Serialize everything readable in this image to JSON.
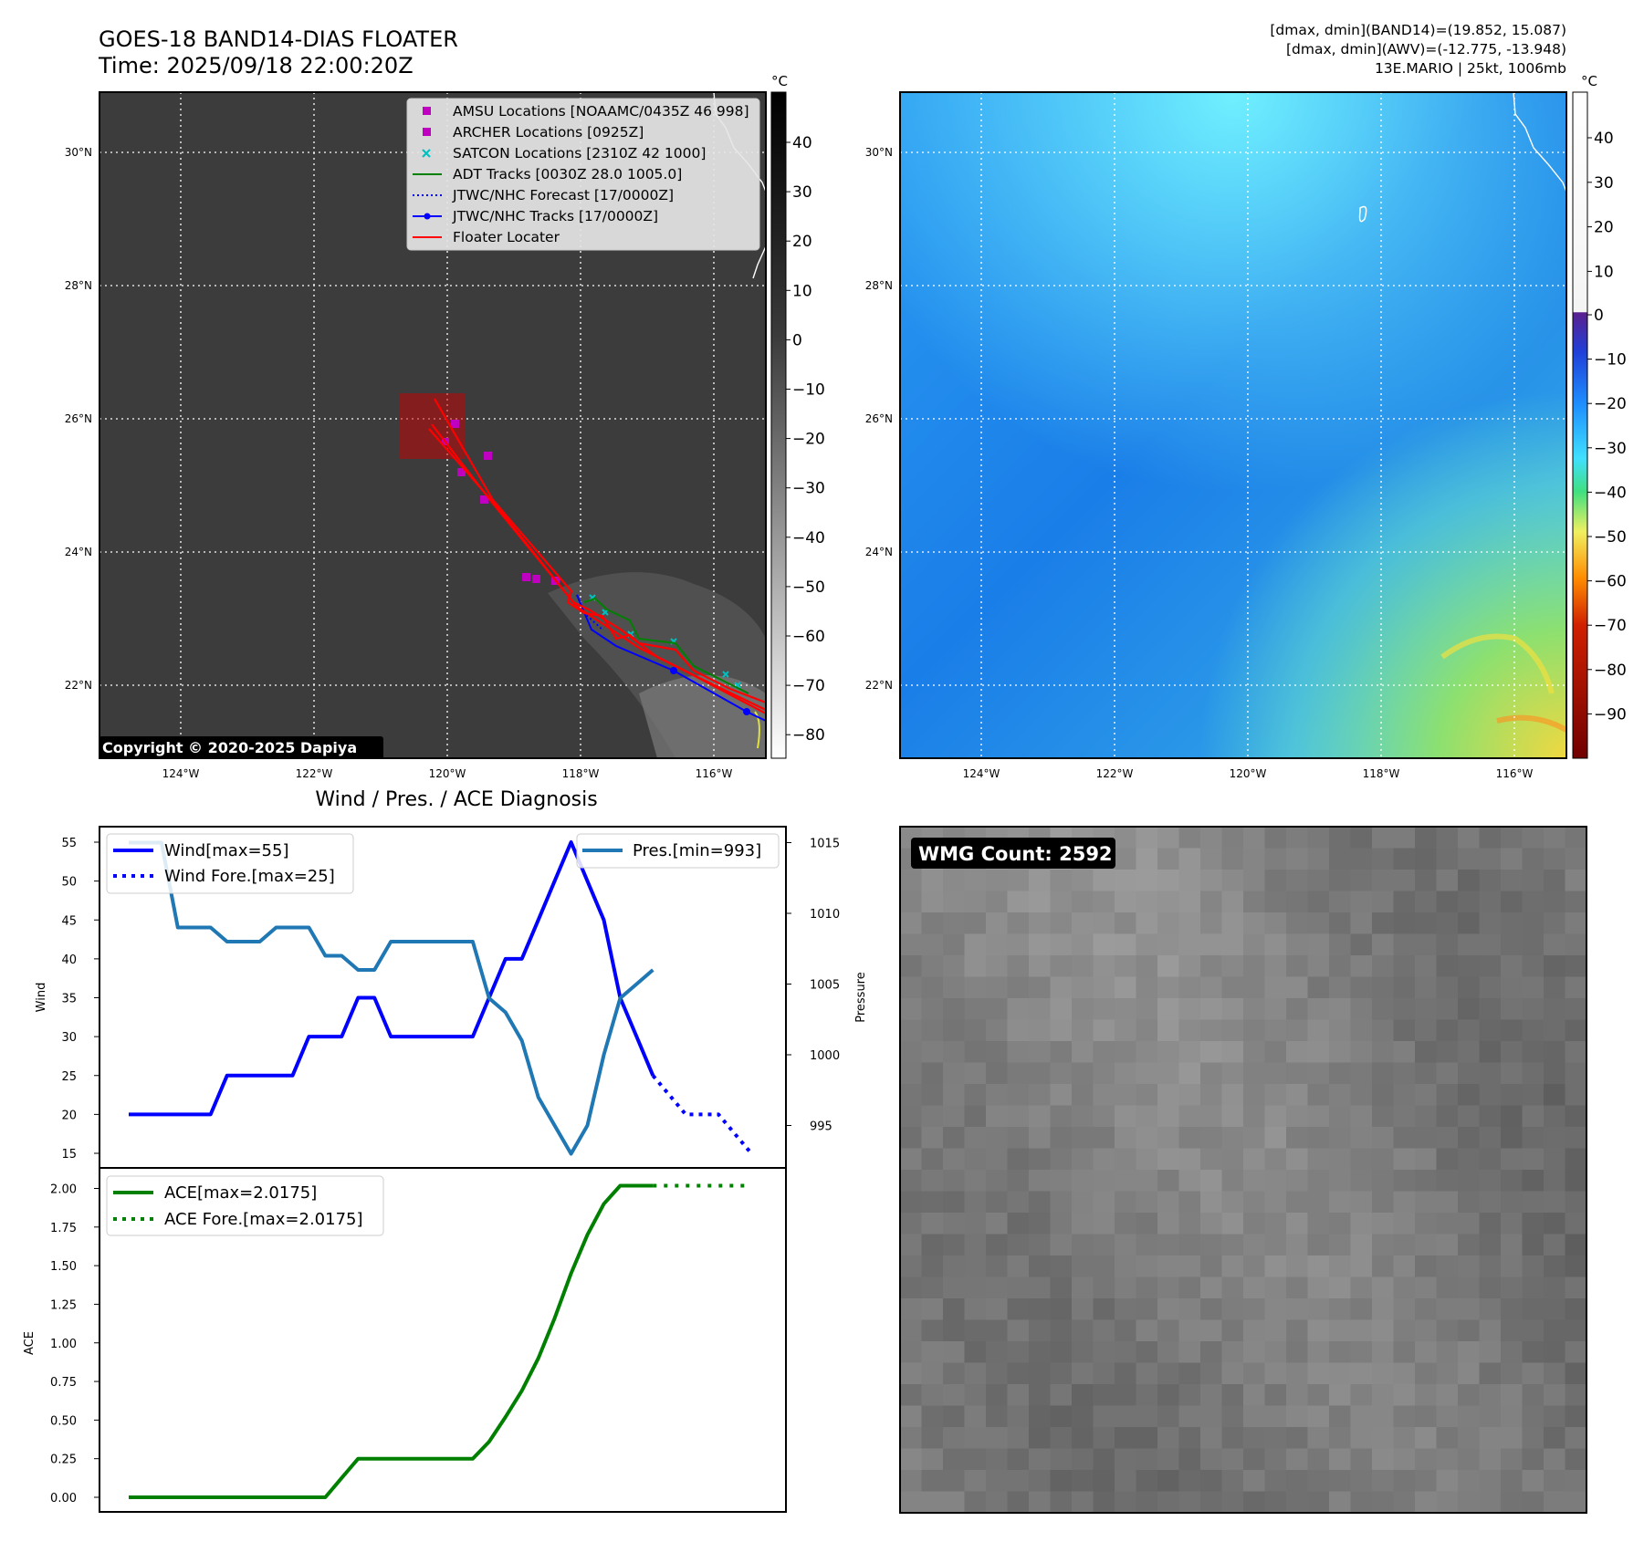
{
  "header": {
    "title_line1": "GOES-18 BAND14-DIAS FLOATER",
    "title_line2": "Time: 2025/09/18 22:00:20Z",
    "info_line1": "[dmax, dmin](BAND14)=(19.852, 15.087)",
    "info_line2": "[dmax, dmin](AWV)=(-12.775, -13.948)",
    "info_line3": "13E.MARIO | 25kt, 1006mb"
  },
  "map": {
    "lat_labels": [
      "30°N",
      "28°N",
      "26°N",
      "24°N",
      "22°N"
    ],
    "lon_labels": [
      "124°W",
      "122°W",
      "120°W",
      "118°W",
      "116°W"
    ],
    "copyright": "Copyright © 2020-2025 Dapiya",
    "legend": [
      {
        "label": "AMSU Locations [NOAAMC/0435Z 46 998]",
        "color": "#c000c0",
        "style": "square"
      },
      {
        "label": "ARCHER Locations [0925Z]",
        "color": "#c000c0",
        "style": "square"
      },
      {
        "label": "SATCON Locations [2310Z 42 1000]",
        "color": "#00c0c0",
        "style": "x"
      },
      {
        "label": "ADT Tracks [0030Z 28.0 1005.0]",
        "color": "#008000",
        "style": "line"
      },
      {
        "label": "JTWC/NHC Forecast [17/0000Z]",
        "color": "#0000ff",
        "style": "dotted"
      },
      {
        "label": "JTWC/NHC Tracks [17/0000Z]",
        "color": "#0000ff",
        "style": "line-dot"
      },
      {
        "label": "Floater Locater",
        "color": "#ff0000",
        "style": "line"
      }
    ]
  },
  "colorbar_ir": {
    "unit": "°C",
    "ticks": [
      "40",
      "30",
      "20",
      "10",
      "0",
      "−10",
      "−20",
      "−30",
      "−40",
      "−50",
      "−60",
      "−70",
      "−80"
    ]
  },
  "colorbar_awv": {
    "unit": "°C",
    "ticks": [
      "40",
      "30",
      "20",
      "10",
      "0",
      "−10",
      "−20",
      "−30",
      "−40",
      "−50",
      "−60",
      "−70",
      "−80",
      "−90"
    ]
  },
  "wmg": {
    "label": "WMG Count: 2592"
  },
  "chart_data": [
    {
      "type": "line",
      "title": "Wind / Pres. / ACE Diagnosis",
      "ylabel": "Wind",
      "y2label": "Pressure",
      "ylim": [
        14,
        56.5
      ],
      "y2lim": [
        992.5,
        1016.3
      ],
      "yticks": [
        "15",
        "20",
        "25",
        "30",
        "35",
        "40",
        "45",
        "50",
        "55"
      ],
      "y2ticks": [
        "995",
        "1000",
        "1005",
        "1010",
        "1015"
      ],
      "x": [
        0,
        1,
        2,
        3,
        4,
        5,
        6,
        7,
        8,
        9,
        10,
        11,
        12,
        13,
        14,
        15,
        16,
        17,
        18,
        19,
        20,
        21,
        22,
        23,
        24,
        25,
        26,
        27,
        28,
        29,
        30,
        31,
        32,
        33,
        34,
        35,
        36,
        37,
        38
      ],
      "series": [
        {
          "name": "Wind[max=55]",
          "axis": "left",
          "color": "#0000ff",
          "dash": "solid",
          "x": [
            0,
            1,
            2,
            3,
            4,
            5,
            6,
            7,
            8,
            9,
            10,
            11,
            12,
            13,
            14,
            15,
            16,
            17,
            18,
            19,
            20,
            21,
            22,
            23,
            24,
            25,
            26,
            27,
            28,
            29,
            30,
            31,
            32
          ],
          "values": [
            20,
            20,
            20,
            20,
            20,
            20,
            25,
            25,
            25,
            25,
            25,
            30,
            30,
            30,
            35,
            35,
            30,
            30,
            30,
            30,
            30,
            30,
            35,
            40,
            40,
            45,
            50,
            55,
            50,
            45,
            35,
            30,
            25
          ]
        },
        {
          "name": "Wind Fore.[max=25]",
          "axis": "left",
          "color": "#0000ff",
          "dash": "dotted",
          "x": [
            32,
            34,
            36,
            38
          ],
          "values": [
            25,
            20,
            20,
            15
          ]
        },
        {
          "name": "Pres.[min=993]",
          "axis": "right",
          "color": "#1f77b4",
          "dash": "solid",
          "x": [
            0,
            1,
            2,
            3,
            4,
            5,
            6,
            7,
            8,
            9,
            10,
            11,
            12,
            13,
            14,
            15,
            16,
            17,
            18,
            19,
            20,
            21,
            22,
            23,
            24,
            25,
            26,
            27,
            28,
            29,
            30,
            31,
            32
          ],
          "values": [
            1015,
            1015,
            1015,
            1009,
            1009,
            1009,
            1008,
            1008,
            1008,
            1009,
            1009,
            1009,
            1007,
            1007,
            1006,
            1006,
            1008,
            1008,
            1008,
            1008,
            1008,
            1008,
            1004,
            1003,
            1001,
            997,
            995,
            993,
            995,
            1000,
            1004,
            1005,
            1006
          ]
        }
      ]
    },
    {
      "type": "line",
      "ylabel": "ACE",
      "ylim": [
        -0.1,
        2.1
      ],
      "yticks": [
        "0.00",
        "0.25",
        "0.50",
        "0.75",
        "1.00",
        "1.25",
        "1.50",
        "1.75",
        "2.00"
      ],
      "series": [
        {
          "name": "ACE[max=2.0175]",
          "color": "#008000",
          "dash": "solid",
          "x": [
            0,
            1,
            2,
            3,
            4,
            5,
            6,
            7,
            8,
            9,
            10,
            11,
            12,
            13,
            14,
            15,
            16,
            17,
            18,
            19,
            20,
            21,
            22,
            23,
            24,
            25,
            26,
            27,
            28,
            29,
            30,
            31,
            32
          ],
          "values": [
            0,
            0,
            0,
            0,
            0,
            0,
            0,
            0,
            0,
            0,
            0,
            0,
            0,
            0.125,
            0.25,
            0.25,
            0.25,
            0.25,
            0.25,
            0.25,
            0.25,
            0.25,
            0.36,
            0.52,
            0.69,
            0.9,
            1.16,
            1.45,
            1.7,
            1.9,
            2.0175,
            2.0175,
            2.0175
          ]
        },
        {
          "name": "ACE Fore.[max=2.0175]",
          "color": "#008000",
          "dash": "dotted",
          "x": [
            32,
            34,
            36,
            38
          ],
          "values": [
            2.0175,
            2.0175,
            2.0175,
            2.0175
          ]
        }
      ]
    }
  ]
}
